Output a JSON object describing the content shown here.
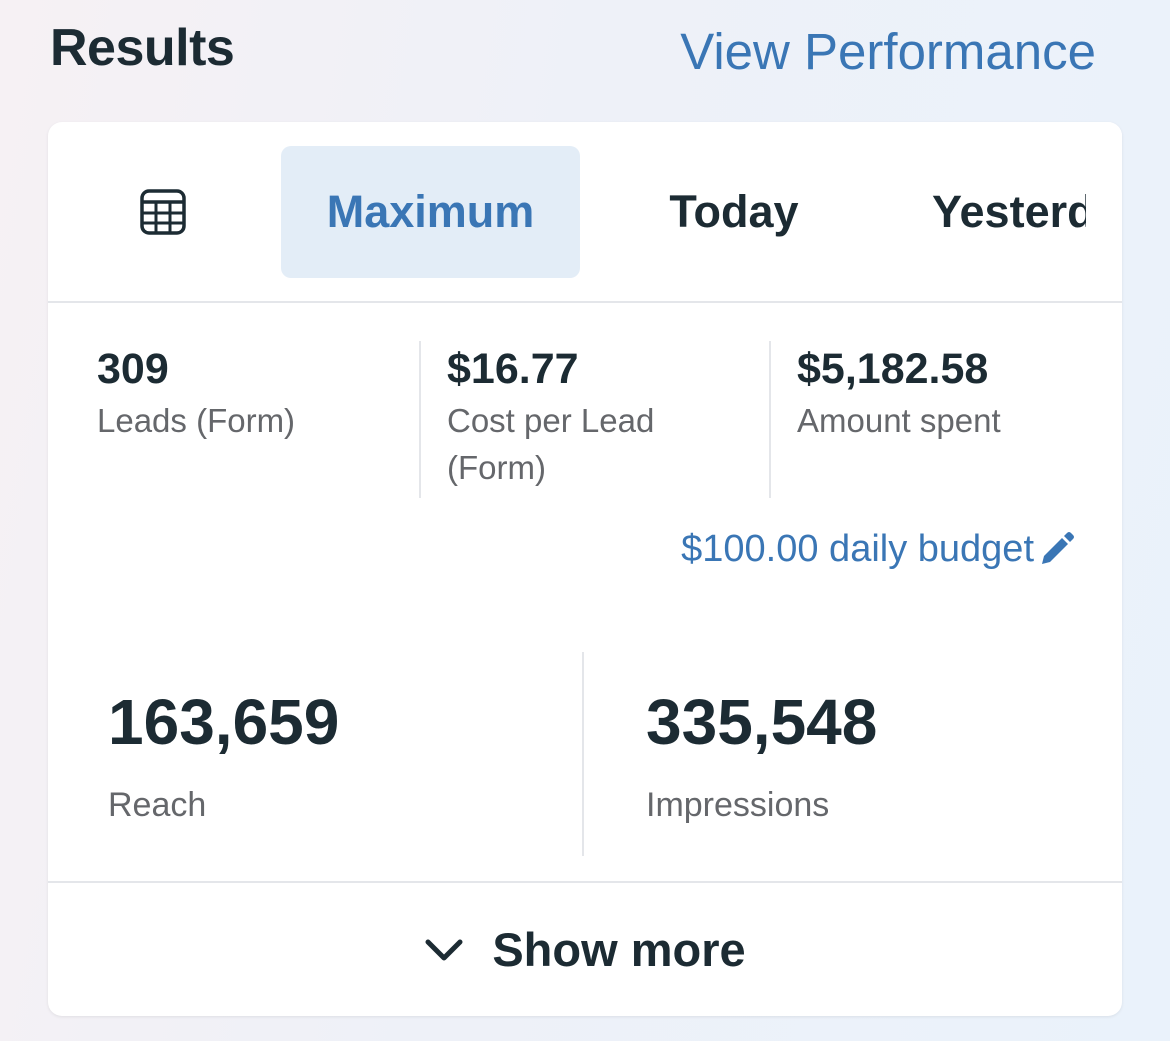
{
  "header": {
    "title": "Results",
    "view_link": "View Performance"
  },
  "tabs": [
    {
      "icon": "calendar-grid-icon",
      "label": ""
    },
    {
      "label": "Maximum",
      "selected": true
    },
    {
      "label": "Today"
    },
    {
      "label": "Yesterday"
    }
  ],
  "stats": [
    {
      "value": "309",
      "label": "Leads (Form)"
    },
    {
      "value": "$16.77",
      "label": "Cost per Lead (Form)"
    },
    {
      "value": "$5,182.58",
      "label": "Amount spent"
    }
  ],
  "budget": {
    "text": "$100.00 daily budget",
    "icon": "pencil-icon"
  },
  "big_stats": [
    {
      "value": "163,659",
      "label": "Reach"
    },
    {
      "value": "335,548",
      "label": "Impressions"
    }
  ],
  "footer": {
    "label": "Show more",
    "icon": "chevron-down-icon"
  },
  "colors": {
    "accent": "#3a76b5",
    "selected_tab_bg": "#e3edf7",
    "text_primary": "#1c2b33",
    "text_secondary": "#65676b",
    "divider": "#e4e6ea"
  }
}
